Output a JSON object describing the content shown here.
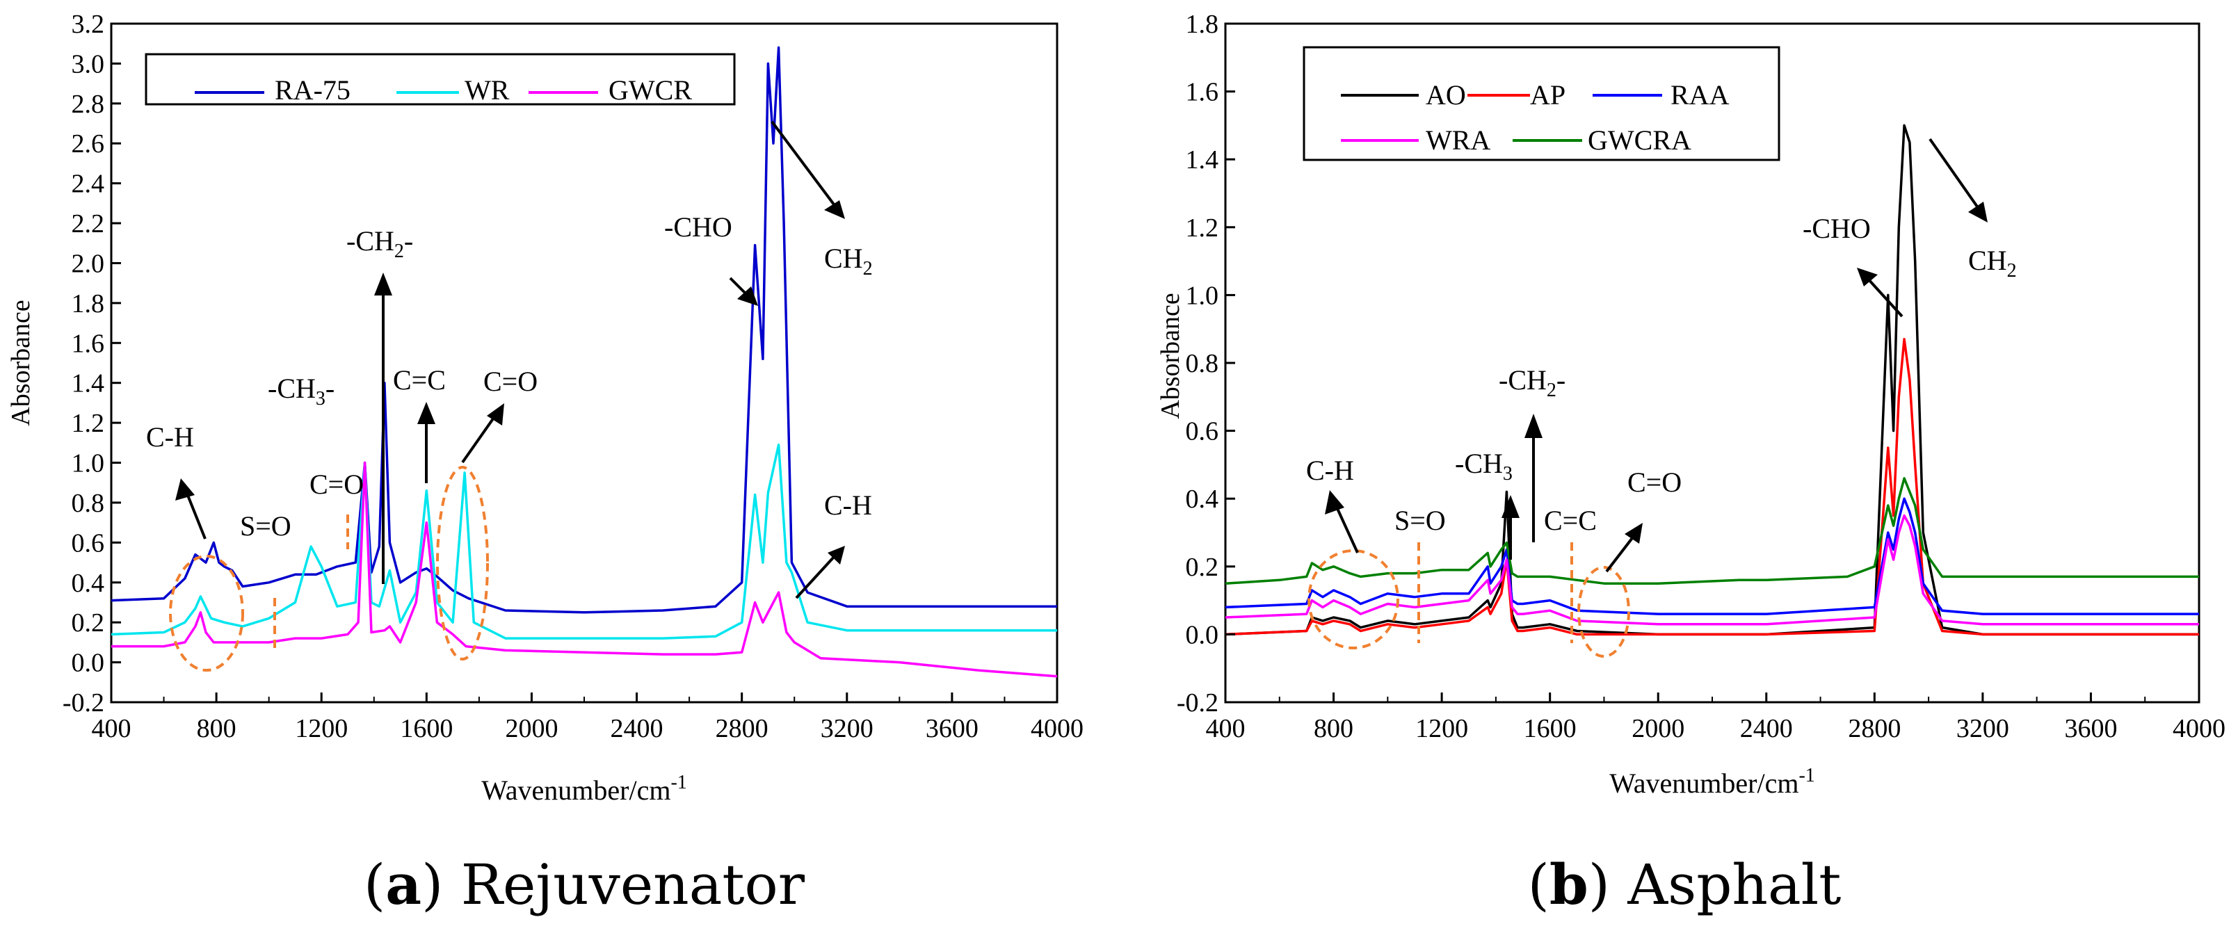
{
  "chart_data": [
    {
      "type": "line",
      "panel": "a",
      "caption_letter": "a",
      "caption_text": "Rejuvenator",
      "xlabel": "Wavenumber/cm",
      "xlabel_sup": "-1",
      "ylabel": "Absorbance",
      "xlim": [
        400,
        4000
      ],
      "ylim": [
        -0.2,
        3.2
      ],
      "xticks": [
        400,
        800,
        1200,
        1600,
        2000,
        2400,
        2800,
        3200,
        3600,
        4000
      ],
      "yticks": [
        "-0.2",
        "0.0",
        "0.2",
        "0.4",
        "0.6",
        "0.8",
        "1.0",
        "1.2",
        "1.4",
        "1.6",
        "1.8",
        "2.0",
        "2.2",
        "2.4",
        "2.6",
        "2.8",
        "3.0",
        "3.2"
      ],
      "legend_position": "top-left",
      "series": [
        {
          "name": "RA-75",
          "color": "#0000cc",
          "x": [
            400,
            600,
            680,
            720,
            760,
            790,
            810,
            830,
            860,
            900,
            1000,
            1100,
            1180,
            1260,
            1330,
            1365,
            1390,
            1420,
            1440,
            1460,
            1500,
            1560,
            1600,
            1640,
            1700,
            1760,
            1900,
            2200,
            2500,
            2700,
            2800,
            2850,
            2880,
            2900,
            2920,
            2940,
            2960,
            2990,
            3050,
            3200,
            3600,
            4000
          ],
          "values": [
            0.31,
            0.32,
            0.42,
            0.54,
            0.5,
            0.6,
            0.5,
            0.48,
            0.46,
            0.38,
            0.4,
            0.44,
            0.44,
            0.48,
            0.5,
            1.0,
            0.45,
            0.58,
            1.4,
            0.6,
            0.4,
            0.45,
            0.47,
            0.43,
            0.36,
            0.32,
            0.26,
            0.25,
            0.26,
            0.28,
            0.4,
            2.09,
            1.52,
            3.0,
            2.6,
            3.08,
            2.2,
            0.5,
            0.35,
            0.28,
            0.28,
            0.28
          ]
        },
        {
          "name": "WR",
          "color": "#00e5ee",
          "x": [
            400,
            600,
            680,
            720,
            740,
            780,
            830,
            900,
            1000,
            1100,
            1160,
            1200,
            1260,
            1330,
            1365,
            1390,
            1420,
            1460,
            1500,
            1560,
            1600,
            1640,
            1700,
            1745,
            1780,
            1900,
            2200,
            2500,
            2700,
            2800,
            2850,
            2880,
            2900,
            2940,
            2970,
            2990,
            3050,
            3200,
            3600,
            4000
          ],
          "values": [
            0.14,
            0.15,
            0.2,
            0.27,
            0.33,
            0.22,
            0.2,
            0.18,
            0.22,
            0.3,
            0.58,
            0.48,
            0.28,
            0.3,
            1.0,
            0.3,
            0.28,
            0.46,
            0.2,
            0.35,
            0.86,
            0.3,
            0.2,
            0.95,
            0.2,
            0.12,
            0.12,
            0.12,
            0.13,
            0.2,
            0.84,
            0.5,
            0.85,
            1.09,
            0.5,
            0.45,
            0.2,
            0.16,
            0.16,
            0.16
          ]
        },
        {
          "name": "GWCR",
          "color": "#ff00ff",
          "x": [
            400,
            600,
            680,
            720,
            740,
            760,
            790,
            900,
            1000,
            1100,
            1200,
            1300,
            1340,
            1365,
            1390,
            1440,
            1460,
            1500,
            1560,
            1600,
            1640,
            1700,
            1750,
            1900,
            2200,
            2500,
            2700,
            2800,
            2850,
            2880,
            2900,
            2940,
            2970,
            3000,
            3100,
            3400,
            3700,
            4000
          ],
          "values": [
            0.08,
            0.08,
            0.1,
            0.18,
            0.25,
            0.15,
            0.1,
            0.1,
            0.1,
            0.12,
            0.12,
            0.14,
            0.2,
            1.0,
            0.15,
            0.16,
            0.18,
            0.1,
            0.3,
            0.7,
            0.2,
            0.14,
            0.08,
            0.06,
            0.05,
            0.04,
            0.04,
            0.05,
            0.3,
            0.2,
            0.25,
            0.35,
            0.15,
            0.1,
            0.02,
            0.0,
            -0.04,
            -0.07
          ]
        }
      ],
      "annotations": [
        "C-H",
        "S=O",
        "C=O",
        "-CH3-",
        "-CH2-",
        "C=C",
        "C=O",
        "-CHO",
        "CH2",
        "C-H"
      ]
    },
    {
      "type": "line",
      "panel": "b",
      "caption_letter": "b",
      "caption_text": "Asphalt",
      "xlabel": "Wavenumber/cm",
      "xlabel_sup": "-1",
      "ylabel": "Absorbance",
      "xlim": [
        400,
        4000
      ],
      "ylim": [
        -0.2,
        1.8
      ],
      "xticks": [
        400,
        800,
        1200,
        1600,
        2000,
        2400,
        2800,
        3200,
        3600,
        4000
      ],
      "yticks": [
        "-0.2",
        "0.0",
        "0.2",
        "0.4",
        "0.6",
        "0.8",
        "1.0",
        "1.2",
        "1.4",
        "1.6",
        "1.8"
      ],
      "legend_position": "top-left",
      "series": [
        {
          "name": "AO",
          "color": "#000000",
          "x": [
            400,
            700,
            720,
            760,
            800,
            860,
            900,
            1000,
            1100,
            1200,
            1300,
            1370,
            1380,
            1420,
            1440,
            1460,
            1480,
            1500,
            1600,
            1700,
            2000,
            2400,
            2800,
            2850,
            2870,
            2890,
            2910,
            2930,
            2950,
            2980,
            3050,
            3200,
            3600,
            4000
          ],
          "values": [
            0.0,
            0.01,
            0.05,
            0.04,
            0.05,
            0.04,
            0.02,
            0.04,
            0.03,
            0.04,
            0.05,
            0.1,
            0.08,
            0.15,
            0.42,
            0.06,
            0.02,
            0.02,
            0.03,
            0.01,
            0.0,
            0.0,
            0.02,
            1.0,
            0.6,
            1.2,
            1.5,
            1.45,
            1.1,
            0.3,
            0.02,
            0.0,
            0.0,
            0.0
          ]
        },
        {
          "name": "AP",
          "color": "#ff0000",
          "x": [
            400,
            700,
            720,
            760,
            800,
            860,
            900,
            1000,
            1100,
            1200,
            1300,
            1370,
            1380,
            1420,
            1440,
            1460,
            1480,
            1500,
            1600,
            1700,
            2000,
            2400,
            2800,
            2850,
            2870,
            2890,
            2910,
            2930,
            2950,
            2980,
            3050,
            3200,
            3600,
            4000
          ],
          "values": [
            0.0,
            0.01,
            0.04,
            0.03,
            0.04,
            0.03,
            0.01,
            0.03,
            0.02,
            0.03,
            0.04,
            0.08,
            0.06,
            0.12,
            0.22,
            0.04,
            0.01,
            0.01,
            0.02,
            0.0,
            0.0,
            0.0,
            0.01,
            0.55,
            0.35,
            0.7,
            0.87,
            0.75,
            0.5,
            0.15,
            0.01,
            0.0,
            0.0,
            0.0
          ]
        },
        {
          "name": "RAA",
          "color": "#0000ff",
          "x": [
            400,
            700,
            720,
            760,
            800,
            860,
            900,
            1000,
            1100,
            1200,
            1300,
            1370,
            1380,
            1420,
            1440,
            1460,
            1480,
            1500,
            1600,
            1700,
            2000,
            2400,
            2800,
            2850,
            2870,
            2890,
            2910,
            2930,
            2950,
            2980,
            3050,
            3200,
            3600,
            4000
          ],
          "values": [
            0.08,
            0.09,
            0.13,
            0.11,
            0.13,
            0.11,
            0.09,
            0.12,
            0.11,
            0.12,
            0.12,
            0.2,
            0.15,
            0.2,
            0.25,
            0.1,
            0.09,
            0.09,
            0.1,
            0.07,
            0.06,
            0.06,
            0.08,
            0.3,
            0.25,
            0.34,
            0.4,
            0.36,
            0.3,
            0.15,
            0.07,
            0.06,
            0.06,
            0.06
          ]
        },
        {
          "name": "WRA",
          "color": "#ff00ff",
          "x": [
            400,
            700,
            720,
            760,
            800,
            860,
            900,
            1000,
            1100,
            1200,
            1300,
            1370,
            1380,
            1420,
            1440,
            1460,
            1480,
            1500,
            1600,
            1700,
            2000,
            2400,
            2800,
            2850,
            2870,
            2890,
            2910,
            2930,
            2950,
            2980,
            3050,
            3200,
            3600,
            4000
          ],
          "values": [
            0.05,
            0.06,
            0.1,
            0.08,
            0.1,
            0.08,
            0.06,
            0.09,
            0.08,
            0.09,
            0.1,
            0.16,
            0.12,
            0.16,
            0.22,
            0.08,
            0.06,
            0.06,
            0.07,
            0.04,
            0.03,
            0.03,
            0.05,
            0.28,
            0.22,
            0.3,
            0.35,
            0.32,
            0.26,
            0.12,
            0.04,
            0.03,
            0.03,
            0.03
          ]
        },
        {
          "name": "GWCRA",
          "color": "#008000",
          "x": [
            400,
            600,
            700,
            720,
            760,
            800,
            860,
            900,
            1000,
            1100,
            1200,
            1300,
            1370,
            1380,
            1420,
            1440,
            1460,
            1480,
            1500,
            1600,
            1700,
            1800,
            2000,
            2300,
            2400,
            2700,
            2800,
            2850,
            2870,
            2890,
            2910,
            2930,
            2950,
            2980,
            3050,
            3200,
            3600,
            4000
          ],
          "values": [
            0.15,
            0.16,
            0.17,
            0.21,
            0.19,
            0.2,
            0.18,
            0.17,
            0.18,
            0.18,
            0.19,
            0.19,
            0.24,
            0.2,
            0.25,
            0.27,
            0.18,
            0.17,
            0.17,
            0.17,
            0.16,
            0.15,
            0.15,
            0.16,
            0.16,
            0.17,
            0.2,
            0.38,
            0.32,
            0.4,
            0.46,
            0.42,
            0.38,
            0.25,
            0.17,
            0.17,
            0.17,
            0.17
          ]
        }
      ],
      "annotations": [
        "C-H",
        "S=O",
        "-CH3",
        "-CH2-",
        "C=C",
        "C=O",
        "-CHO",
        "CH2"
      ]
    }
  ]
}
